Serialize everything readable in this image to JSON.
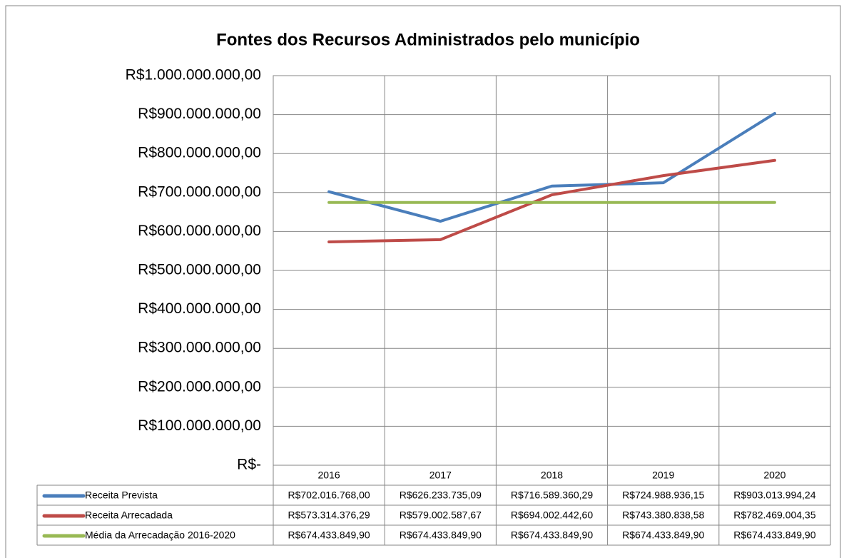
{
  "chart_data": {
    "type": "line",
    "title": "Fontes dos Recursos Administrados pelo município",
    "categories": [
      "2016",
      "2017",
      "2018",
      "2019",
      "2020"
    ],
    "series": [
      {
        "name": "Receita Prevista",
        "color": "#4a7ebb",
        "values": [
          702016768.0,
          626233735.09,
          716589360.29,
          724988936.15,
          903013994.24
        ],
        "value_labels": [
          "R$702.016.768,00",
          "R$626.233.735,09",
          "R$716.589.360,29",
          "R$724.988.936,15",
          "R$903.013.994,24"
        ]
      },
      {
        "name": "Receita Arrecadada",
        "color": "#be4b48",
        "values": [
          573314376.29,
          579002587.67,
          694002442.6,
          743380838.58,
          782469004.35
        ],
        "value_labels": [
          "R$573.314.376,29",
          "R$579.002.587,67",
          "R$694.002.442,60",
          "R$743.380.838,58",
          "R$782.469.004,35"
        ]
      },
      {
        "name": "Média da Arrecadação 2016-2020",
        "color": "#98b954",
        "values": [
          674433849.9,
          674433849.9,
          674433849.9,
          674433849.9,
          674433849.9
        ],
        "value_labels": [
          "R$674.433.849,90",
          "R$674.433.849,90",
          "R$674.433.849,90",
          "R$674.433.849,90",
          "R$674.433.849,90"
        ]
      }
    ],
    "ylim": [
      0,
      1000000000
    ],
    "yticks": [
      {
        "value": 0,
        "label": "R$-"
      },
      {
        "value": 100000000,
        "label": "R$100.000.000,00"
      },
      {
        "value": 200000000,
        "label": "R$200.000.000,00"
      },
      {
        "value": 300000000,
        "label": "R$300.000.000,00"
      },
      {
        "value": 400000000,
        "label": "R$400.000.000,00"
      },
      {
        "value": 500000000,
        "label": "R$500.000.000,00"
      },
      {
        "value": 600000000,
        "label": "R$600.000.000,00"
      },
      {
        "value": 700000000,
        "label": "R$700.000.000,00"
      },
      {
        "value": 800000000,
        "label": "R$800.000.000,00"
      },
      {
        "value": 900000000,
        "label": "R$900.000.000,00"
      },
      {
        "value": 1000000000,
        "label": "R$1.000.000.000,00"
      }
    ],
    "grid": true
  }
}
